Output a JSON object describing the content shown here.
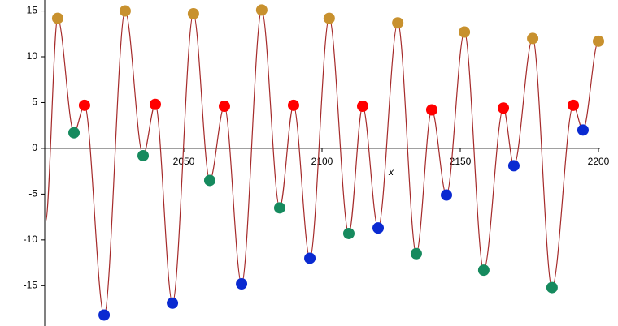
{
  "chart_data": {
    "type": "line",
    "x_label": "x",
    "xlim": [
      2000,
      2200
    ],
    "ylim": [
      -19.4,
      16.2
    ],
    "xticks": [
      2050,
      2100,
      2150,
      2200
    ],
    "yticks": [
      -15,
      -10,
      -5,
      0,
      5,
      10,
      15
    ],
    "line": {
      "color": "#a52a2a",
      "x": [
        2000,
        2004.4,
        2010.3,
        2014.1,
        2021.2,
        2028.8,
        2035.3,
        2039.7,
        2045.9,
        2053.5,
        2059.4,
        2064.7,
        2070.9,
        2078.2,
        2084.7,
        2089.7,
        2095.6,
        2102.6,
        2109.7,
        2114.7,
        2120.3,
        2127.4,
        2134.1,
        2139.7,
        2145,
        2151.5,
        2158.5,
        2165.6,
        2169.4,
        2176.2,
        2183.2,
        2190.9,
        2194.4,
        2200
      ],
      "values": [
        -8,
        14.2,
        1.7,
        4.7,
        -18.2,
        15.0,
        -0.8,
        4.8,
        -16.9,
        14.7,
        -3.5,
        4.6,
        -14.8,
        15.1,
        -6.5,
        4.7,
        -12.0,
        14.2,
        -9.3,
        4.6,
        -8.7,
        13.7,
        -11.5,
        4.2,
        -5.1,
        12.7,
        -13.3,
        4.4,
        -1.9,
        12.0,
        -15.2,
        4.7,
        2.0,
        11.7
      ]
    },
    "series": [
      {
        "color": "#c8912e",
        "x": [
          2004.4,
          2028.8,
          2053.5,
          2078.2,
          2102.6,
          2127.4,
          2151.5,
          2176.2,
          2200
        ],
        "values": [
          14.2,
          15.0,
          14.7,
          15.1,
          14.2,
          13.7,
          12.7,
          12.0,
          11.7
        ]
      },
      {
        "color": "#ff0000",
        "x": [
          2014.1,
          2039.7,
          2064.7,
          2089.7,
          2114.7,
          2139.7,
          2165.6,
          2190.9
        ],
        "values": [
          4.7,
          4.8,
          4.6,
          4.7,
          4.6,
          4.2,
          4.4,
          4.7
        ]
      },
      {
        "color": "#168a5e",
        "x": [
          2010.3,
          2035.3,
          2059.4,
          2084.7,
          2109.7,
          2134.1,
          2158.5,
          2183.2
        ],
        "values": [
          1.7,
          -0.8,
          -3.5,
          -6.5,
          -9.3,
          -11.5,
          -13.3,
          -15.2
        ]
      },
      {
        "color": "#0a2ad1",
        "x": [
          2021.2,
          2045.9,
          2070.9,
          2095.6,
          2120.3,
          2145,
          2169.4,
          2194.4
        ],
        "values": [
          -18.2,
          -16.9,
          -14.8,
          -12.0,
          -8.7,
          -5.1,
          -1.9,
          2.0
        ]
      }
    ]
  }
}
